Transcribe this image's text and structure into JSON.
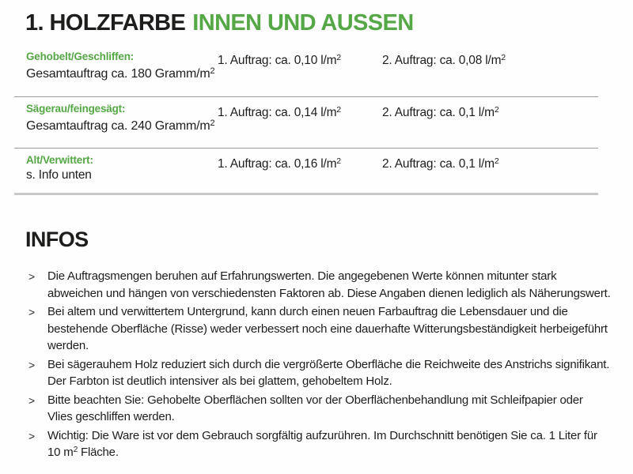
{
  "colors": {
    "accent_green": "#55a845",
    "text_black": "#1d1d1b",
    "divider_gray": "#9c9c9c"
  },
  "header": {
    "title_black": "1. HOLZFARBE",
    "title_green": "INNEN UND AUSSEN"
  },
  "table": {
    "rows": [
      {
        "label": "Gehobelt/Geschliffen:",
        "sub": {
          "pre": "Gesamtauftrag ca. 180 Gramm/m",
          "sup": "2"
        },
        "coat1": {
          "pre": "1. Auftrag: ca. 0,10 l/m",
          "sup": "2"
        },
        "coat2": {
          "pre": "2. Auftrag: ca. 0,08 l/m",
          "sup": "2"
        }
      },
      {
        "label": "Sägerau/feingesägt:",
        "sub": {
          "pre": "Gesamtauftrag ca. 240 Gramm/m",
          "sup": "2"
        },
        "coat1": {
          "pre": "1. Auftrag: ca. 0,14 l/m",
          "sup": "2"
        },
        "coat2": {
          "pre": "2. Auftrag: ca. 0,1 l/m",
          "sup": "2"
        }
      },
      {
        "label": "Alt/Verwittert:",
        "sub": {
          "pre": "s. Info unten",
          "sup": ""
        },
        "coat1": {
          "pre": "1. Auftrag: ca. 0,16 l/m",
          "sup": "2"
        },
        "coat2": {
          "pre": "2. Auftrag: ca. 0,1 l/m",
          "sup": "2"
        }
      }
    ]
  },
  "infos": {
    "heading": "INFOS",
    "marker": ">",
    "bullets": [
      {
        "pre": "Die Auftragsmengen beruhen auf Erfahrungswerten. Die angegebenen Werte können mitunter stark abweichen und hängen von verschiedensten Faktoren ab. Diese Angaben dienen lediglich als Näherungswert.",
        "sup": "",
        "post": ""
      },
      {
        "pre": "Bei altem und verwittertem Untergrund, kann durch einen neuen Farbauftrag die Lebensdauer und die bestehende Oberfläche (Risse) weder verbessert noch eine dauerhafte Witterungsbeständigkeit herbeigeführt werden.",
        "sup": "",
        "post": ""
      },
      {
        "pre": "Bei sägerauhem Holz reduziert sich durch die vergrößerte Oberfläche die Reichweite des Anstrichs signifikant. Der Farbton ist deutlich intensiver als bei glattem, gehobeltem Holz.",
        "sup": "",
        "post": ""
      },
      {
        "pre": "Bitte beachten Sie: Gehobelte Oberflächen sollten vor der Oberflächenbehandlung mit Schleifpapier oder Vlies geschliffen werden.",
        "sup": "",
        "post": ""
      },
      {
        "pre": "Wichtig: Die Ware ist vor dem Gebrauch sorgfältig aufzurühren. Im Durchschnitt benötigen Sie ca. 1 Liter für 10 m",
        "sup": "2",
        "post": " Fläche."
      }
    ]
  }
}
